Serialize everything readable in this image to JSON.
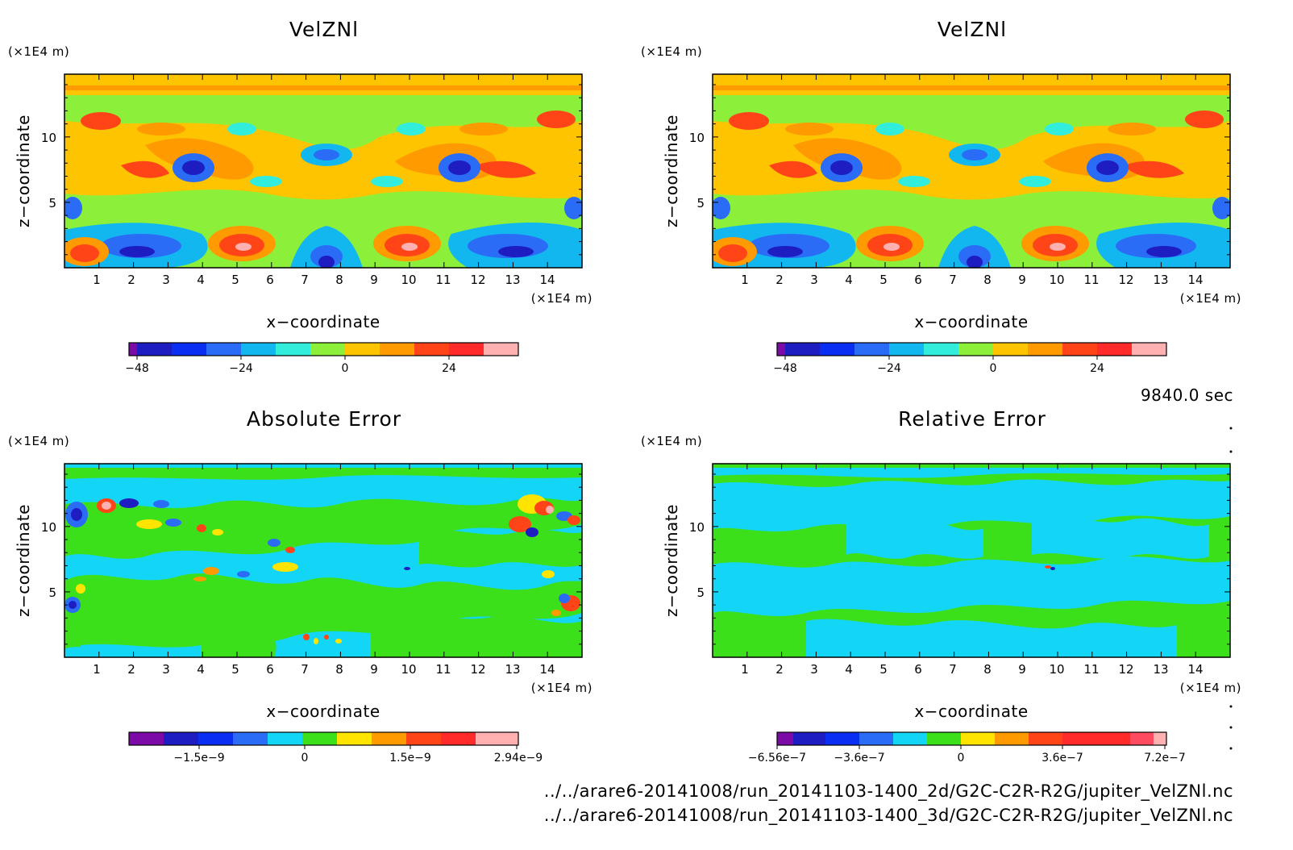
{
  "figure": {
    "time_label": "9840.0 sec",
    "files": [
      "../../arare6-20141008/run_20141103-1400_2d/G2C-C2R-R2G/jupiter_VelZNl.nc",
      "../../arare6-20141008/run_20141103-1400_3d/G2C-C2R-R2G/jupiter_VelZNl.nc"
    ]
  },
  "chart_data": [
    {
      "type": "heatmap",
      "title": "VelZNl",
      "xlabel": "x−coordinate",
      "ylabel": "z−coordinate",
      "x_unit": "(×1E4 m)",
      "y_unit": "(×1E4 m)",
      "xlim": [
        0,
        15
      ],
      "ylim": [
        0,
        14.8
      ],
      "x_ticks": [
        "1",
        "2",
        "3",
        "4",
        "5",
        "6",
        "7",
        "8",
        "9",
        "10",
        "11",
        "12",
        "13",
        "14"
      ],
      "y_ticks": [
        "5",
        "10"
      ],
      "grid": false,
      "colorbar": {
        "colors": [
          "#7b0aa6",
          "#1d1dc2",
          "#0b2ff2",
          "#2a6cf5",
          "#13b7f0",
          "#33eddc",
          "#8cf03a",
          "#ffc400",
          "#ff9a00",
          "#ff4518",
          "#ff2a2a",
          "#ffb0b0"
        ],
        "tick_labels": [
          "−48",
          "−24",
          "0",
          "24"
        ]
      }
    },
    {
      "type": "heatmap",
      "title": "VelZNl",
      "xlabel": "x−coordinate",
      "ylabel": "z−coordinate",
      "x_unit": "(×1E4 m)",
      "y_unit": "(×1E4 m)",
      "xlim": [
        0,
        15
      ],
      "ylim": [
        0,
        14.8
      ],
      "x_ticks": [
        "1",
        "2",
        "3",
        "4",
        "5",
        "6",
        "7",
        "8",
        "9",
        "10",
        "11",
        "12",
        "13",
        "14"
      ],
      "y_ticks": [
        "5",
        "10"
      ],
      "grid": false,
      "colorbar": {
        "colors": [
          "#7b0aa6",
          "#1d1dc2",
          "#0b2ff2",
          "#2a6cf5",
          "#13b7f0",
          "#33eddc",
          "#8cf03a",
          "#ffc400",
          "#ff9a00",
          "#ff4518",
          "#ff2a2a",
          "#ffb0b0"
        ],
        "tick_labels": [
          "−48",
          "−24",
          "0",
          "24"
        ]
      }
    },
    {
      "type": "heatmap",
      "title": "Absolute Error",
      "xlabel": "x−coordinate",
      "ylabel": "z−coordinate",
      "x_unit": "(×1E4 m)",
      "y_unit": "(×1E4 m)",
      "xlim": [
        0,
        15
      ],
      "ylim": [
        0,
        14.8
      ],
      "x_ticks": [
        "1",
        "2",
        "3",
        "4",
        "5",
        "6",
        "7",
        "8",
        "9",
        "10",
        "11",
        "12",
        "13",
        "14"
      ],
      "y_ticks": [
        "5",
        "10"
      ],
      "grid": false,
      "colorbar": {
        "colors": [
          "#7b0aa6",
          "#1d1dc2",
          "#0b2ff2",
          "#2a6cf5",
          "#13d6f6",
          "#3ce01a",
          "#ffe400",
          "#ff9a00",
          "#ff4518",
          "#ff2a2a",
          "#ffb0b0"
        ],
        "tick_labels": [
          "−1.5e−9",
          "0",
          "1.5e−9",
          "2.94e−9"
        ]
      }
    },
    {
      "type": "heatmap",
      "title": "Relative Error",
      "xlabel": "x−coordinate",
      "ylabel": "z−coordinate",
      "x_unit": "(×1E4 m)",
      "y_unit": "(×1E4 m)",
      "xlim": [
        0,
        15
      ],
      "ylim": [
        0,
        14.8
      ],
      "x_ticks": [
        "1",
        "2",
        "3",
        "4",
        "5",
        "6",
        "7",
        "8",
        "9",
        "10",
        "11",
        "12",
        "13",
        "14"
      ],
      "y_ticks": [
        "5",
        "10"
      ],
      "grid": false,
      "colorbar": {
        "colors": [
          "#7b0aa6",
          "#1d1dc2",
          "#0b2ff2",
          "#2a6cf5",
          "#13d6f6",
          "#3ce01a",
          "#ffe400",
          "#ff9a00",
          "#ff4518",
          "#ff2a2a",
          "#ffb0b0"
        ],
        "tick_labels": [
          "−6.56e−7",
          "−3.6e−7",
          "0",
          "3.6e−7",
          "7.2e−7"
        ]
      }
    }
  ]
}
